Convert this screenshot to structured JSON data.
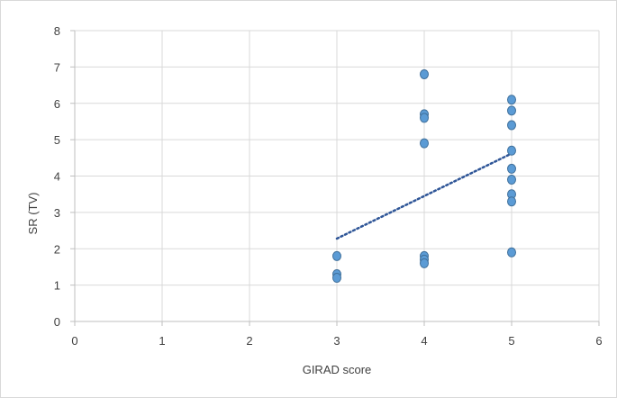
{
  "chart_data": {
    "type": "scatter",
    "title": "",
    "xlabel": "GIRAD score",
    "ylabel": "SR (TV)",
    "xlim": [
      0,
      6
    ],
    "ylim": [
      0,
      8
    ],
    "x_ticks": [
      "0",
      "1",
      "2",
      "3",
      "4",
      "5",
      "6"
    ],
    "y_ticks": [
      "0",
      "1",
      "2",
      "3",
      "4",
      "5",
      "6",
      "7",
      "8"
    ],
    "grid": true,
    "legend": "none",
    "series": [
      {
        "points": [
          {
            "x": 3,
            "y": 1.8
          },
          {
            "x": 3,
            "y": 1.3
          },
          {
            "x": 3,
            "y": 1.2
          },
          {
            "x": 4,
            "y": 6.8
          },
          {
            "x": 4,
            "y": 5.7
          },
          {
            "x": 4,
            "y": 5.6
          },
          {
            "x": 4,
            "y": 4.9
          },
          {
            "x": 4,
            "y": 1.8
          },
          {
            "x": 4,
            "y": 1.7
          },
          {
            "x": 4,
            "y": 1.6
          },
          {
            "x": 5,
            "y": 6.1
          },
          {
            "x": 5,
            "y": 5.8
          },
          {
            "x": 5,
            "y": 5.4
          },
          {
            "x": 5,
            "y": 4.7
          },
          {
            "x": 5,
            "y": 4.2
          },
          {
            "x": 5,
            "y": 3.9
          },
          {
            "x": 5,
            "y": 3.5
          },
          {
            "x": 5,
            "y": 3.3
          },
          {
            "x": 5,
            "y": 1.9
          }
        ],
        "color": "#5b9bd5",
        "edge_color": "#41719c"
      }
    ],
    "trendline": {
      "style": "dotted",
      "color": "#2e5597",
      "from": {
        "x": 3,
        "y": 2.28
      },
      "to": {
        "x": 5,
        "y": 4.62
      }
    }
  }
}
